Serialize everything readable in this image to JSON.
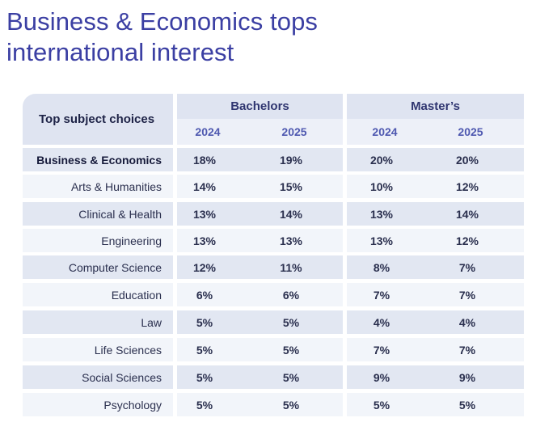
{
  "headline": {
    "line1": "Business & Economics tops",
    "line2": "international interest"
  },
  "table": {
    "corner_label": "Top subject choices",
    "groups": [
      "Bachelors",
      "Master’s"
    ],
    "years": [
      "2024",
      "2025",
      "2024",
      "2025"
    ],
    "rows": [
      {
        "subject": "Business & Economics",
        "values": [
          "18%",
          "19%",
          "20%",
          "20%"
        ]
      },
      {
        "subject": "Arts & Humanities",
        "values": [
          "14%",
          "15%",
          "10%",
          "12%"
        ]
      },
      {
        "subject": "Clinical & Health",
        "values": [
          "13%",
          "14%",
          "13%",
          "14%"
        ]
      },
      {
        "subject": "Engineering",
        "values": [
          "13%",
          "13%",
          "13%",
          "12%"
        ]
      },
      {
        "subject": "Computer Science",
        "values": [
          "12%",
          "11%",
          "8%",
          "7%"
        ]
      },
      {
        "subject": "Education",
        "values": [
          "6%",
          "6%",
          "7%",
          "7%"
        ]
      },
      {
        "subject": "Law",
        "values": [
          "5%",
          "5%",
          "4%",
          "4%"
        ]
      },
      {
        "subject": "Life Sciences",
        "values": [
          "5%",
          "5%",
          "7%",
          "7%"
        ]
      },
      {
        "subject": "Social Sciences",
        "values": [
          "5%",
          "5%",
          "9%",
          "9%"
        ]
      },
      {
        "subject": "Psychology",
        "values": [
          "5%",
          "5%",
          "5%",
          "5%"
        ]
      }
    ]
  }
}
